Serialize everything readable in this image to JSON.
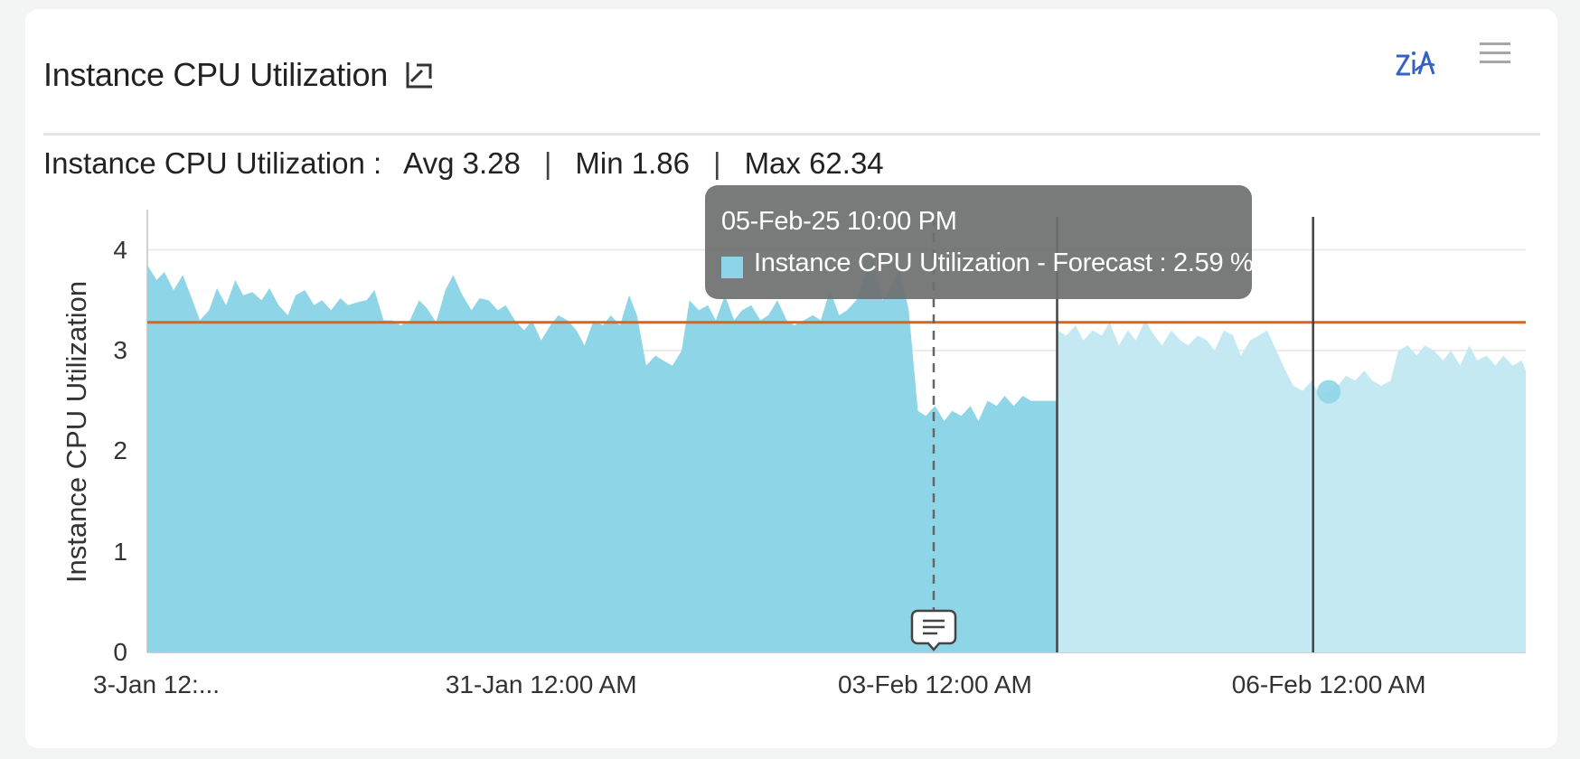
{
  "widget": {
    "title": "Instance CPU Utilization",
    "summary": {
      "label": "Instance CPU Utilization :",
      "avg": "Avg 3.28",
      "min": "Min 1.86",
      "max": "Max 62.34",
      "separator": "|"
    }
  },
  "tooltip": {
    "date": "05-Feb-25 10:00 PM",
    "text": "Instance CPU Utilization - Forecast : 2.59 %"
  },
  "icons": {
    "expand": "trend-chart-icon",
    "zia": "zia-icon",
    "menu": "hamburger-menu-icon"
  },
  "colors": {
    "actual_fill": "#8fd5e8",
    "forecast_fill": "#c5e9f3",
    "average_line": "#d9671b",
    "tooltip_bg": "#6e7070"
  },
  "chart_data": {
    "type": "area",
    "ylabel": "Instance CPU Utilization",
    "ylim": [
      0,
      4.4
    ],
    "y_ticks": [
      "4",
      "3",
      "2",
      "1",
      "0"
    ],
    "x_ticks": [
      "3-Jan 12:...",
      "31-Jan 12:00 AM",
      "03-Feb 12:00 AM",
      "06-Feb 12:00 AM"
    ],
    "x_ticks_day": [
      -1,
      2,
      5,
      8
    ],
    "x_range_days": [
      -1,
      9.5
    ],
    "grid": true,
    "average_line": 3.28,
    "forecast_start_day": 5.93,
    "series": [
      {
        "name": "Instance CPU Utilization",
        "x": [
          -1.0,
          -0.93,
          -0.87,
          -0.8,
          -0.73,
          -0.67,
          -0.6,
          -0.53,
          -0.47,
          -0.4,
          -0.33,
          -0.27,
          -0.2,
          -0.13,
          -0.07,
          0.0,
          0.07,
          0.13,
          0.2,
          0.27,
          0.33,
          0.4,
          0.47,
          0.53,
          0.6,
          0.67,
          0.73,
          0.8,
          0.87,
          0.93,
          1.0,
          1.07,
          1.13,
          1.2,
          1.27,
          1.33,
          1.4,
          1.47,
          1.53,
          1.6,
          1.67,
          1.73,
          1.8,
          1.87,
          1.93,
          2.0,
          2.07,
          2.13,
          2.2,
          2.27,
          2.33,
          2.4,
          2.47,
          2.53,
          2.6,
          2.67,
          2.73,
          2.8,
          2.87,
          2.93,
          3.0,
          3.07,
          3.13,
          3.2,
          3.27,
          3.33,
          3.4,
          3.47,
          3.53,
          3.6,
          3.67,
          3.73,
          3.8,
          3.87,
          3.93,
          4.0,
          4.07,
          4.13,
          4.2,
          4.27,
          4.33,
          4.4,
          4.47,
          4.53,
          4.6,
          4.67,
          4.73,
          4.8,
          4.87,
          4.93,
          5.0,
          5.07,
          5.13,
          5.2,
          5.27,
          5.33,
          5.4,
          5.47,
          5.53,
          5.6,
          5.67,
          5.73,
          5.8,
          5.87,
          5.93
        ],
        "values": [
          3.85,
          3.7,
          3.78,
          3.6,
          3.75,
          3.55,
          3.3,
          3.4,
          3.62,
          3.45,
          3.7,
          3.55,
          3.58,
          3.5,
          3.62,
          3.45,
          3.35,
          3.55,
          3.6,
          3.45,
          3.5,
          3.4,
          3.52,
          3.45,
          3.48,
          3.5,
          3.6,
          3.3,
          3.3,
          3.25,
          3.3,
          3.5,
          3.42,
          3.28,
          3.6,
          3.75,
          3.55,
          3.4,
          3.52,
          3.5,
          3.4,
          3.45,
          3.3,
          3.2,
          3.3,
          3.1,
          3.25,
          3.35,
          3.3,
          3.2,
          3.05,
          3.3,
          3.25,
          3.35,
          3.25,
          3.55,
          3.35,
          2.85,
          2.95,
          2.9,
          2.85,
          3.0,
          3.5,
          3.4,
          3.45,
          3.3,
          3.55,
          3.3,
          3.4,
          3.45,
          3.3,
          3.35,
          3.5,
          3.3,
          3.25,
          3.3,
          3.35,
          3.3,
          3.6,
          3.35,
          3.4,
          3.5,
          3.75,
          3.9,
          3.5,
          3.65,
          3.8,
          3.4,
          2.4,
          2.35,
          2.45,
          2.3,
          2.4,
          2.35,
          2.45,
          2.3,
          2.5,
          2.45,
          2.55,
          2.45,
          2.55,
          2.5,
          2.5,
          2.5,
          2.5
        ]
      },
      {
        "name": "Instance CPU Utilization - Forecast",
        "x": [
          5.93,
          6.0,
          6.07,
          6.13,
          6.2,
          6.27,
          6.33,
          6.4,
          6.47,
          6.53,
          6.6,
          6.67,
          6.73,
          6.8,
          6.87,
          6.93,
          7.0,
          7.07,
          7.13,
          7.2,
          7.27,
          7.33,
          7.4,
          7.47,
          7.53,
          7.6,
          7.67,
          7.73,
          7.8,
          7.87,
          7.93,
          8.0,
          8.07,
          8.13,
          8.2,
          8.27,
          8.33,
          8.4,
          8.47,
          8.53,
          8.6,
          8.67,
          8.73,
          8.8,
          8.87,
          8.93,
          9.0,
          9.07,
          9.13,
          9.2,
          9.27,
          9.33,
          9.4,
          9.47,
          9.5
        ],
        "values": [
          3.2,
          3.15,
          3.25,
          3.1,
          3.2,
          3.15,
          3.28,
          3.05,
          3.2,
          3.1,
          3.3,
          3.15,
          3.05,
          3.2,
          3.1,
          3.05,
          3.15,
          3.1,
          3.0,
          3.2,
          3.15,
          2.95,
          3.1,
          3.15,
          3.2,
          3.0,
          2.8,
          2.65,
          2.6,
          2.7,
          2.55,
          2.59,
          2.65,
          2.75,
          2.7,
          2.8,
          2.7,
          2.65,
          2.7,
          3.0,
          3.05,
          2.95,
          3.05,
          3.0,
          2.9,
          3.0,
          2.85,
          3.05,
          2.9,
          2.95,
          2.85,
          2.95,
          2.85,
          2.9,
          2.8
        ]
      }
    ],
    "highlight": {
      "day": 8.0,
      "value": 2.59
    },
    "markers": [
      {
        "day": 4.99,
        "style": "dashed"
      },
      {
        "day": 5.93,
        "style": "solid"
      },
      {
        "day": 7.88,
        "style": "solid"
      }
    ]
  }
}
